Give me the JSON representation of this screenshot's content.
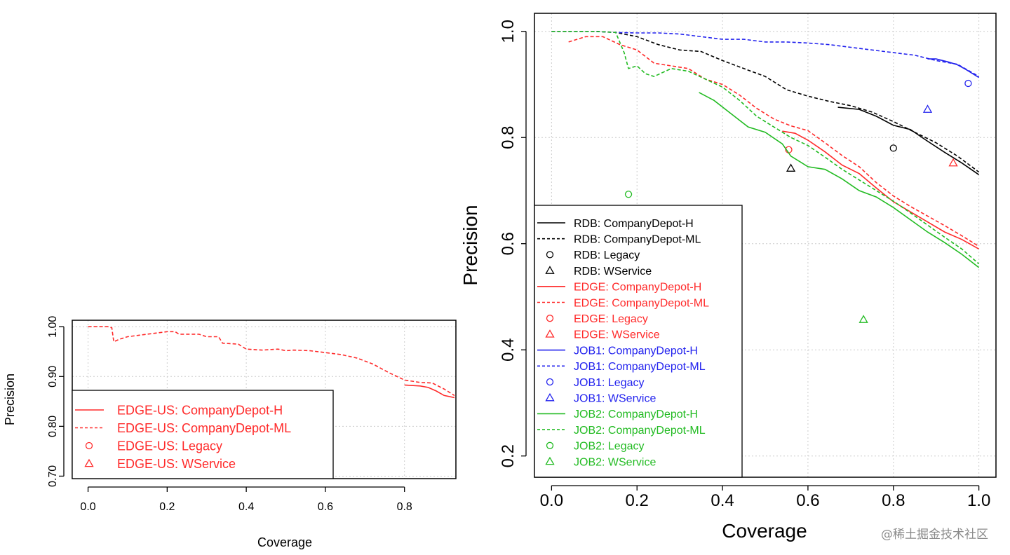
{
  "colors": {
    "RDB": "#000000",
    "EDGE": "#ff2a2a",
    "JOB1": "#2222ee",
    "JOB2": "#22bb22",
    "grid": "#cccccc"
  },
  "watermark": "@稀土掘金技术社区",
  "chart_data": [
    {
      "type": "line",
      "xlabel": "Coverage",
      "ylabel": "Precision",
      "xlim": [
        -0.04,
        0.93
      ],
      "ylim": [
        0.695,
        1.013
      ],
      "xticks": [
        0.0,
        0.2,
        0.4,
        0.6,
        0.8
      ],
      "xtick_labels": [
        "0.0",
        "0.2",
        "0.4",
        "0.6",
        "0.8"
      ],
      "yticks": [
        0.7,
        0.8,
        0.9,
        1.0
      ],
      "ytick_labels": [
        "0.70",
        "0.80",
        "0.90",
        "1.00"
      ],
      "grid": true,
      "legend_position": "bottom-left",
      "series": [
        {
          "name": "EDGE-US: CompanyDepot-H",
          "group": "EDGE",
          "kind": "solid",
          "x": [
            0.8,
            0.84,
            0.86,
            0.88,
            0.9,
            0.93
          ],
          "y": [
            0.883,
            0.881,
            0.878,
            0.871,
            0.862,
            0.857
          ]
        },
        {
          "name": "EDGE-US: CompanyDepot-ML",
          "group": "EDGE",
          "kind": "dashed",
          "x": [
            0.0,
            0.05,
            0.06,
            0.065,
            0.08,
            0.1,
            0.15,
            0.2,
            0.22,
            0.23,
            0.28,
            0.3,
            0.33,
            0.34,
            0.38,
            0.4,
            0.44,
            0.48,
            0.5,
            0.52,
            0.56,
            0.6,
            0.64,
            0.68,
            0.72,
            0.76,
            0.8,
            0.84,
            0.87,
            0.9,
            0.93
          ],
          "y": [
            1.0,
            1.0,
            0.998,
            0.97,
            0.975,
            0.98,
            0.985,
            0.99,
            0.99,
            0.985,
            0.985,
            0.98,
            0.98,
            0.967,
            0.965,
            0.955,
            0.953,
            0.955,
            0.952,
            0.953,
            0.952,
            0.948,
            0.944,
            0.937,
            0.925,
            0.908,
            0.893,
            0.888,
            0.887,
            0.875,
            0.86
          ]
        },
        {
          "name": "EDGE-US: Legacy",
          "group": "EDGE",
          "kind": "circle",
          "x": [],
          "y": []
        },
        {
          "name": "EDGE-US: WService",
          "group": "EDGE",
          "kind": "triangle",
          "x": [],
          "y": []
        }
      ]
    },
    {
      "type": "line",
      "xlabel": "Coverage",
      "ylabel": "Precision",
      "xlim": [
        -0.04,
        1.04
      ],
      "ylim": [
        0.16,
        1.034
      ],
      "xticks": [
        0.0,
        0.2,
        0.4,
        0.6,
        0.8,
        1.0
      ],
      "xtick_labels": [
        "0.0",
        "0.2",
        "0.4",
        "0.6",
        "0.8",
        "1.0"
      ],
      "yticks": [
        0.2,
        0.4,
        0.6,
        0.8,
        1.0
      ],
      "ytick_labels": [
        "0.2",
        "0.4",
        "0.6",
        "0.8",
        "1.0"
      ],
      "grid": true,
      "legend_position": "bottom-left",
      "series": [
        {
          "name": "RDB: CompanyDepot-H",
          "group": "RDB",
          "kind": "solid",
          "x": [
            0.67,
            0.72,
            0.76,
            0.8,
            0.84,
            0.88,
            0.92,
            0.96,
            1.0
          ],
          "y": [
            0.857,
            0.853,
            0.84,
            0.823,
            0.815,
            0.793,
            0.772,
            0.752,
            0.73
          ]
        },
        {
          "name": "RDB: CompanyDepot-ML",
          "group": "RDB",
          "kind": "dashed",
          "x": [
            0.0,
            0.05,
            0.1,
            0.15,
            0.2,
            0.25,
            0.3,
            0.35,
            0.4,
            0.45,
            0.5,
            0.55,
            0.6,
            0.65,
            0.7,
            0.75,
            0.8,
            0.85,
            0.9,
            0.95,
            1.0
          ],
          "y": [
            1.0,
            1.0,
            1.0,
            0.998,
            0.99,
            0.975,
            0.965,
            0.962,
            0.945,
            0.93,
            0.915,
            0.89,
            0.878,
            0.868,
            0.86,
            0.848,
            0.83,
            0.81,
            0.79,
            0.765,
            0.735
          ]
        },
        {
          "name": "RDB: Legacy",
          "group": "RDB",
          "kind": "circle",
          "x": [
            0.8
          ],
          "y": [
            0.78
          ]
        },
        {
          "name": "RDB: WService",
          "group": "RDB",
          "kind": "triangle",
          "x": [
            0.56
          ],
          "y": [
            0.742
          ]
        },
        {
          "name": "EDGE: CompanyDepot-H",
          "group": "EDGE",
          "kind": "solid",
          "x": [
            0.54,
            0.57,
            0.6,
            0.64,
            0.68,
            0.72,
            0.76,
            0.8,
            0.84,
            0.88,
            0.92,
            0.96,
            1.0
          ],
          "y": [
            0.812,
            0.808,
            0.795,
            0.773,
            0.748,
            0.732,
            0.705,
            0.679,
            0.66,
            0.641,
            0.622,
            0.608,
            0.59
          ]
        },
        {
          "name": "EDGE: CompanyDepot-ML",
          "group": "EDGE",
          "kind": "dashed",
          "x": [
            0.04,
            0.08,
            0.12,
            0.16,
            0.2,
            0.24,
            0.28,
            0.32,
            0.36,
            0.4,
            0.44,
            0.48,
            0.52,
            0.56,
            0.6,
            0.64,
            0.68,
            0.72,
            0.76,
            0.8,
            0.84,
            0.88,
            0.92,
            0.96,
            1.0
          ],
          "y": [
            0.98,
            0.99,
            0.99,
            0.975,
            0.965,
            0.94,
            0.935,
            0.93,
            0.91,
            0.9,
            0.88,
            0.855,
            0.835,
            0.822,
            0.813,
            0.79,
            0.766,
            0.745,
            0.715,
            0.69,
            0.67,
            0.652,
            0.634,
            0.615,
            0.595
          ]
        },
        {
          "name": "EDGE: Legacy",
          "group": "EDGE",
          "kind": "circle",
          "x": [
            0.555
          ],
          "y": [
            0.777
          ]
        },
        {
          "name": "EDGE: WService",
          "group": "EDGE",
          "kind": "triangle",
          "x": [
            0.94
          ],
          "y": [
            0.752
          ]
        },
        {
          "name": "JOB1: CompanyDepot-H",
          "group": "JOB1",
          "kind": "solid",
          "x": [
            0.88,
            0.9,
            0.93,
            0.95,
            0.97,
            1.0
          ],
          "y": [
            0.948,
            0.948,
            0.942,
            0.937,
            0.928,
            0.913
          ]
        },
        {
          "name": "JOB1: CompanyDepot-ML",
          "group": "JOB1",
          "kind": "dashed",
          "x": [
            0.0,
            0.05,
            0.1,
            0.15,
            0.2,
            0.25,
            0.3,
            0.35,
            0.4,
            0.45,
            0.5,
            0.55,
            0.6,
            0.65,
            0.7,
            0.75,
            0.8,
            0.85,
            0.9,
            0.95,
            1.0
          ],
          "y": [
            1.0,
            1.0,
            1.0,
            0.998,
            0.997,
            0.997,
            0.995,
            0.99,
            0.985,
            0.985,
            0.98,
            0.98,
            0.978,
            0.975,
            0.97,
            0.965,
            0.96,
            0.955,
            0.945,
            0.938,
            0.915
          ]
        },
        {
          "name": "JOB1: Legacy",
          "group": "JOB1",
          "kind": "circle",
          "x": [
            0.975
          ],
          "y": [
            0.902
          ]
        },
        {
          "name": "JOB1: WService",
          "group": "JOB1",
          "kind": "triangle",
          "x": [
            0.88
          ],
          "y": [
            0.853
          ]
        },
        {
          "name": "JOB2: CompanyDepot-H",
          "group": "JOB2",
          "kind": "solid",
          "x": [
            0.345,
            0.38,
            0.42,
            0.46,
            0.5,
            0.54,
            0.56,
            0.6,
            0.64,
            0.68,
            0.72,
            0.76,
            0.8,
            0.84,
            0.88,
            0.92,
            0.96,
            1.0
          ],
          "y": [
            0.885,
            0.87,
            0.845,
            0.82,
            0.81,
            0.788,
            0.765,
            0.745,
            0.74,
            0.722,
            0.7,
            0.688,
            0.668,
            0.645,
            0.622,
            0.602,
            0.58,
            0.555
          ]
        },
        {
          "name": "JOB2: CompanyDepot-ML",
          "group": "JOB2",
          "kind": "dashed",
          "x": [
            0.0,
            0.05,
            0.1,
            0.15,
            0.17,
            0.18,
            0.2,
            0.22,
            0.24,
            0.28,
            0.32,
            0.36,
            0.4,
            0.44,
            0.48,
            0.52,
            0.56,
            0.6,
            0.64,
            0.68,
            0.72,
            0.76,
            0.8,
            0.84,
            0.88,
            0.92,
            0.96,
            1.0
          ],
          "y": [
            1.0,
            1.0,
            1.0,
            0.998,
            0.96,
            0.93,
            0.935,
            0.92,
            0.915,
            0.93,
            0.925,
            0.91,
            0.895,
            0.87,
            0.84,
            0.82,
            0.8,
            0.785,
            0.763,
            0.74,
            0.72,
            0.7,
            0.68,
            0.658,
            0.635,
            0.612,
            0.59,
            0.562
          ]
        },
        {
          "name": "JOB2: Legacy",
          "group": "JOB2",
          "kind": "circle",
          "x": [
            0.18
          ],
          "y": [
            0.693
          ]
        },
        {
          "name": "JOB2: WService",
          "group": "JOB2",
          "kind": "triangle",
          "x": [
            0.73
          ],
          "y": [
            0.457
          ]
        }
      ]
    }
  ]
}
